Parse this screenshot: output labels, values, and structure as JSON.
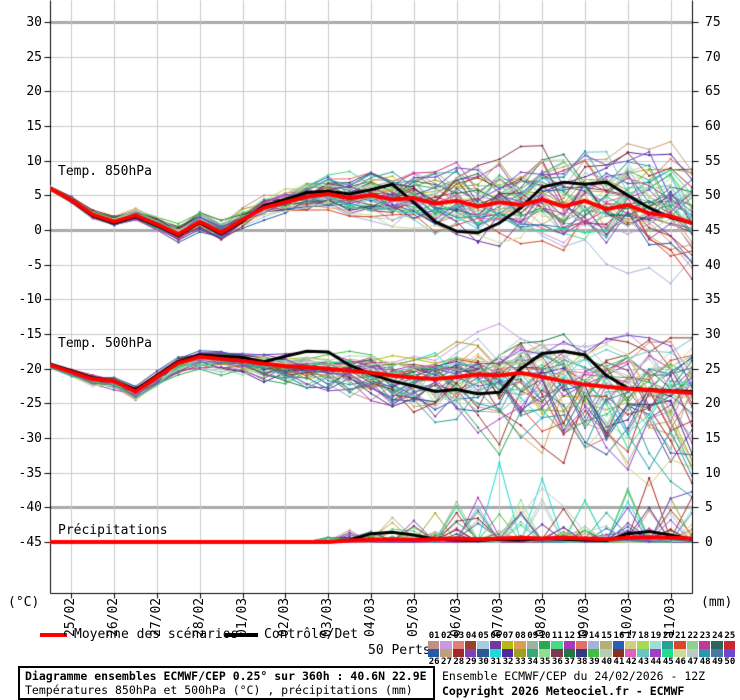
{
  "chart_data": {
    "type": "line",
    "title": "Diagramme ensembles ECMWF/CEP 0.25° sur 360h : 40.6N 22.9E",
    "subtitle": "Températures 850hPa et 500hPa (°C) , précipitations (mm)",
    "x_dates": [
      "25/02",
      "26/02",
      "27/02",
      "28/02",
      "01/03",
      "02/03",
      "03/03",
      "04/03",
      "05/03",
      "06/03",
      "07/03",
      "08/03",
      "09/03",
      "10/03",
      "11/03"
    ],
    "time_step_hours": 12,
    "n_points": 31,
    "left_axis": {
      "unit": "(°C)",
      "ticks": [
        30,
        25,
        20,
        15,
        10,
        5,
        0,
        -5,
        -10,
        -15,
        -20,
        -25,
        -30,
        -35,
        -40,
        -45
      ],
      "thick_lines": [
        30,
        0,
        -40
      ]
    },
    "right_axis": {
      "unit": "(mm)",
      "ticks": [
        75,
        70,
        65,
        60,
        55,
        50,
        45,
        40,
        35,
        30,
        25,
        20,
        15,
        10,
        5,
        0
      ]
    },
    "grid": true,
    "legend_position": "bottom",
    "legend": {
      "mean_label": "Moyenne des scénarios",
      "control_label": "Contrôle/Det",
      "mean_color": "#ff0000",
      "control_color": "#000000"
    },
    "panels": [
      {
        "label": "Temp. 850hPa",
        "unit": "°C",
        "mean": [
          6.0,
          4.3,
          2.2,
          1.2,
          2.1,
          0.8,
          -0.6,
          1.2,
          -0.4,
          1.5,
          3.2,
          4.0,
          4.8,
          5.2,
          4.6,
          5.0,
          4.4,
          4.6,
          3.8,
          4.2,
          3.4,
          4.0,
          3.6,
          4.4,
          3.4,
          4.2,
          3.0,
          3.6,
          2.4,
          2.0,
          1.0
        ],
        "control": [
          6.0,
          4.2,
          2.0,
          1.0,
          1.9,
          0.6,
          -0.8,
          1.0,
          -0.6,
          1.3,
          3.5,
          4.4,
          5.4,
          5.6,
          5.2,
          5.8,
          6.6,
          4.0,
          1.2,
          -0.2,
          -0.4,
          1.0,
          3.2,
          6.2,
          6.9,
          6.6,
          6.9,
          5.0,
          3.2,
          1.8,
          1.0
        ],
        "spread": [
          0.3,
          0.35,
          0.45,
          0.5,
          0.55,
          0.6,
          0.65,
          0.7,
          0.75,
          0.85,
          1.0,
          1.1,
          1.3,
          1.5,
          1.7,
          2.0,
          2.3,
          2.6,
          2.9,
          3.2,
          3.4,
          3.6,
          3.8,
          4.0,
          4.1,
          4.2,
          4.3,
          4.4,
          4.5,
          4.6,
          4.7
        ],
        "clamp": [
          -9,
          13
        ]
      },
      {
        "label": "Temp. 500hPa",
        "unit": "°C",
        "mean": [
          -19.5,
          -20.5,
          -21.5,
          -21.8,
          -23.3,
          -21.2,
          -19.2,
          -18.3,
          -18.6,
          -18.9,
          -19.3,
          -19.6,
          -19.8,
          -20.0,
          -20.3,
          -20.6,
          -21.0,
          -21.3,
          -21.5,
          -21.2,
          -20.8,
          -21.0,
          -20.6,
          -21.2,
          -21.8,
          -22.3,
          -22.6,
          -22.9,
          -23.1,
          -23.3,
          -23.5
        ],
        "control": [
          -19.3,
          -20.3,
          -21.3,
          -21.8,
          -23.0,
          -21.0,
          -19.0,
          -18.0,
          -18.2,
          -18.4,
          -19.0,
          -18.2,
          -17.5,
          -17.6,
          -19.5,
          -20.8,
          -21.8,
          -22.5,
          -23.3,
          -23.0,
          -23.6,
          -23.4,
          -20.0,
          -17.8,
          -17.5,
          -18.0,
          -21.0,
          -22.8,
          -23.0,
          -23.2,
          -23.3
        ],
        "spread": [
          0.3,
          0.4,
          0.5,
          0.55,
          0.6,
          0.6,
          0.65,
          0.7,
          0.8,
          0.9,
          1.1,
          1.3,
          1.5,
          1.7,
          2.0,
          2.3,
          2.6,
          3.0,
          3.4,
          3.8,
          4.2,
          4.6,
          5.0,
          5.3,
          5.6,
          5.9,
          6.1,
          6.3,
          6.5,
          6.7,
          6.9
        ],
        "clamp": [
          -38.5,
          -13.5
        ]
      },
      {
        "label": "Précipitations",
        "unit": "mm",
        "mean": [
          0,
          0,
          0,
          0,
          0,
          0,
          0,
          0,
          0,
          0,
          0,
          0,
          0,
          0,
          0.2,
          0.3,
          0.4,
          0.3,
          0.4,
          0.5,
          0.4,
          0.5,
          0.6,
          0.5,
          0.6,
          0.5,
          0.4,
          0.6,
          0.7,
          0.6,
          0.5
        ],
        "control": [
          0,
          0,
          0,
          0,
          0,
          0,
          0,
          0,
          0,
          0,
          0,
          0,
          0,
          0,
          0.3,
          1.2,
          1.4,
          1.0,
          0.4,
          0.3,
          0.2,
          0.4,
          0.3,
          0.5,
          0.4,
          0.3,
          0.2,
          1.2,
          1.5,
          1.0,
          0.4
        ],
        "spread": [
          0,
          0,
          0,
          0,
          0,
          0,
          0,
          0,
          0,
          0,
          0,
          0,
          0,
          1,
          2,
          3,
          4,
          5,
          7,
          9,
          11,
          13,
          13,
          12,
          11,
          10,
          9,
          10,
          11,
          12,
          11
        ],
        "clamp": [
          0,
          18
        ]
      }
    ],
    "perturbations": {
      "label": "50 Perts.",
      "count": 50,
      "colors": [
        "#c09088",
        "#c898e0",
        "#e08078",
        "#98402c",
        "#a8ccdf",
        "#7038a0",
        "#b8b810",
        "#d8a050",
        "#98b4a4",
        "#28a850",
        "#48d888",
        "#a838b8",
        "#e07068",
        "#a4b4d8",
        "#b0b078",
        "#2860b8",
        "#d0d080",
        "#a8d858",
        "#a0dcd8",
        "#28a098",
        "#d84828",
        "#90d090",
        "#c03898",
        "#286858",
        "#c82830",
        "#2858a8",
        "#c0a078",
        "#a02828",
        "#8040b8",
        "#305898",
        "#20d8d8",
        "#5028a0",
        "#a0a020",
        "#38a878",
        "#90e090",
        "#803850",
        "#207840",
        "#383880",
        "#40c040",
        "#b8ccb0",
        "#883020",
        "#e060c0",
        "#68c8c0",
        "#a040c8",
        "#20e090",
        "#ccdc98",
        "#b8ccc4",
        "#2898b0",
        "#4878a8",
        "#7048d0"
      ]
    },
    "grid_color": "#c8c8c8",
    "grid_thick_color": "#aaaaaa"
  },
  "footer": {
    "box_title": "Diagramme ensembles ECMWF/CEP 0.25° sur 360h : 40.6N 22.9E",
    "box_subtitle": "Températures 850hPa et 500hPa (°C) , précipitations (mm)",
    "run_info": "Ensemble ECMWF/CEP du 24/02/2026 - 12Z",
    "copyright": "Copyright 2026 Meteociel.fr - ECMWF"
  }
}
